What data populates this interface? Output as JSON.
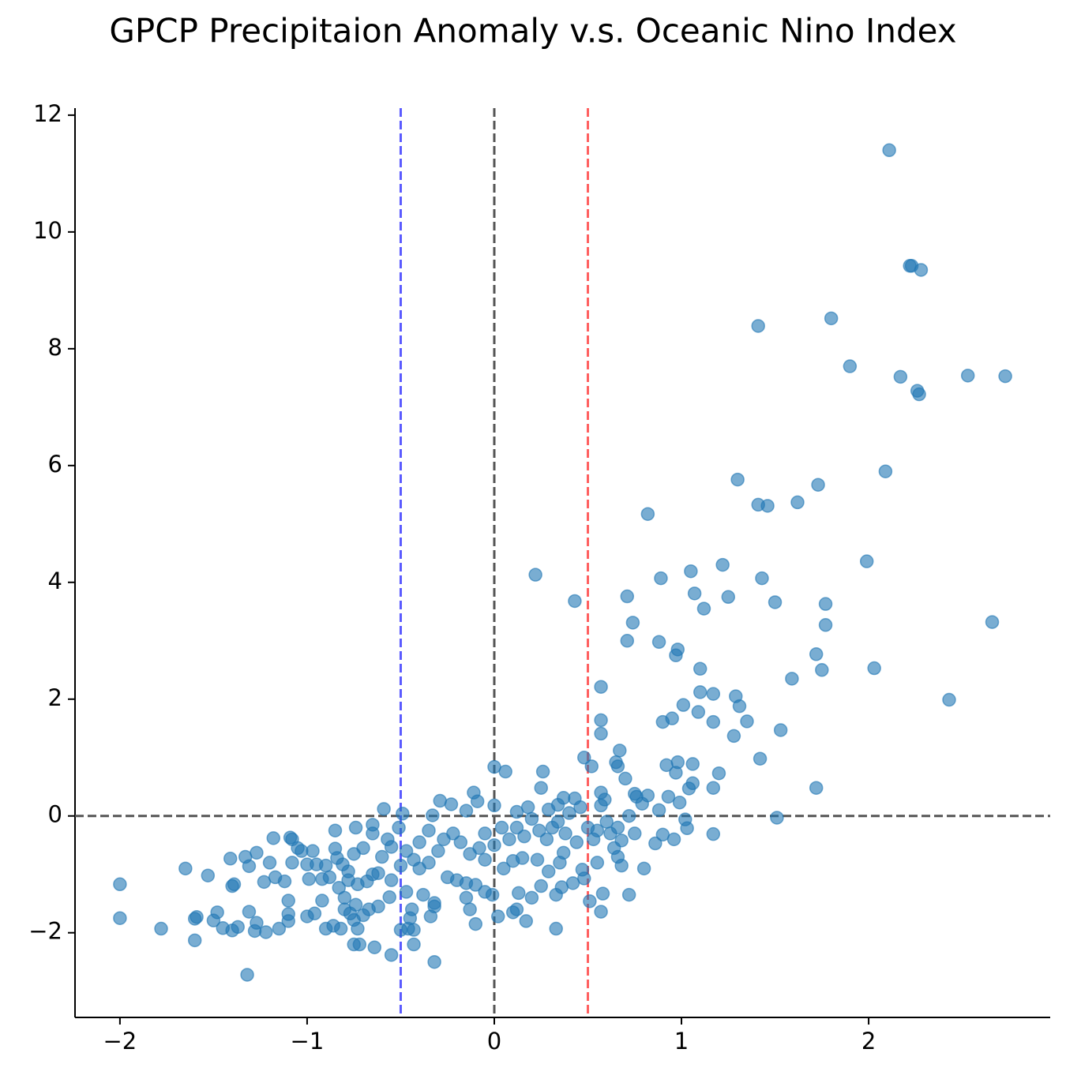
{
  "chart_data": {
    "type": "scatter",
    "title": "GPCP Precipitaion Anomaly v.s. Oceanic Nino Index",
    "color": "#1f77b4",
    "opacity": 0.6,
    "xlim": [
      -2.24,
      2.97
    ],
    "ylim": [
      -3.45,
      12.12
    ],
    "xticks": [
      {
        "value": -2,
        "label": "−2"
      },
      {
        "value": -1,
        "label": "−1"
      },
      0,
      1,
      2
    ],
    "yticks": [
      {
        "value": -2,
        "label": "−2"
      },
      0,
      2,
      4,
      6,
      8,
      10,
      12
    ],
    "vlines": [
      {
        "x": -0.5,
        "color": "#5a5aff"
      },
      {
        "x": 0,
        "color": "#555555"
      },
      {
        "x": 0.5,
        "color": "#ff6060"
      }
    ],
    "hlines": [
      {
        "y": 0,
        "color": "#555555"
      }
    ],
    "x": [
      2.11,
      2.22,
      2.23,
      2.28,
      1.41,
      1.8,
      1.9,
      2.17,
      2.26,
      2.27,
      2.53,
      2.73,
      1.3,
      1.73,
      2.09,
      1.41,
      1.46,
      1.62,
      0.82,
      0.22,
      0.43,
      1.05,
      1.22,
      1.43,
      1.99,
      0.89,
      1.07,
      1.25,
      0.71,
      1.12,
      1.5,
      1.77,
      0.74,
      1.77,
      2.66,
      0.71,
      0.88,
      0.98,
      0.97,
      1.72,
      1.1,
      1.75,
      2.03,
      1.59,
      0.57,
      1.1,
      1.17,
      1.29,
      1.31,
      1.01,
      1.09,
      2.43,
      0.57,
      0.9,
      0.95,
      1.17,
      1.35,
      0.57,
      1.28,
      1.53,
      0.67,
      0.48,
      0.65,
      0.66,
      0.52,
      0.92,
      0.98,
      1.06,
      0.97,
      1.2,
      1.06,
      1.04,
      1.17,
      1.72,
      1.42,
      1.51,
      1.17,
      0.7,
      0.75,
      0.76,
      0.57,
      0.59,
      0.57,
      0.82,
      0.79,
      0.93,
      0.99,
      0.88,
      1.02,
      1.03,
      0.96,
      0.86,
      0.8,
      0.9,
      0.75,
      0.68,
      0.68,
      0.66,
      0.64,
      0.72,
      0.58,
      0.57,
      0.51,
      0.55,
      0.47,
      0.48,
      0.55,
      0.6,
      0.46,
      0.43,
      0.37,
      0.26,
      0.25,
      0.34,
      0.29,
      0.18,
      0.12,
      0.06,
      0.0,
      0.0,
      -0.09,
      -0.11,
      -0.15,
      -0.23,
      -0.29,
      -0.33,
      -0.49,
      -0.59,
      -0.51,
      -0.65,
      -0.74,
      -0.85,
      -0.97,
      -1.0,
      -1.09,
      -1.08,
      -1.18,
      -1.27,
      -1.33,
      -1.41,
      -1.2,
      -1.05,
      -1.08,
      -1.12,
      -1.1,
      -1.17,
      -1.23,
      -1.31,
      -1.39,
      -1.4,
      -1.53,
      -1.65,
      -2.0,
      -2.0,
      -1.78,
      -1.6,
      -1.59,
      -1.6,
      -1.5,
      -1.48,
      -1.45,
      -1.4,
      -1.37,
      -1.31,
      -1.27,
      -1.28,
      -1.22,
      -1.15,
      -1.1,
      -1.1,
      -1.32,
      -1.0,
      -0.96,
      -0.92,
      -0.9,
      -0.86,
      -0.82,
      -0.8,
      -0.77,
      -0.75,
      -0.73,
      -0.72,
      -0.75,
      -0.7,
      -0.67,
      -0.64,
      -0.55,
      -0.5,
      -0.46,
      -0.43,
      -0.43,
      -0.32,
      -0.45,
      -0.44,
      -0.34,
      -0.32,
      -0.32,
      -0.38,
      -0.47,
      -0.56,
      -0.55,
      -0.62,
      -0.65,
      -0.68,
      -0.73,
      -0.78,
      -0.78,
      -0.81,
      -0.84,
      -0.85,
      -0.9,
      -0.88,
      -0.83,
      -0.8,
      -0.74,
      -0.62,
      -0.6,
      -0.57,
      -0.55,
      -0.47,
      -0.43,
      -0.4,
      -0.35,
      -0.3,
      -0.27,
      -0.25,
      -0.2,
      -0.15,
      -0.1,
      -0.15,
      -0.13,
      -0.1,
      -0.05,
      -0.01,
      0.02,
      0.1,
      0.12,
      0.17,
      0.13,
      0.2,
      0.25,
      0.33,
      0.36,
      0.42,
      0.33,
      0.29,
      0.35,
      0.37,
      0.23,
      0.15,
      0.1,
      0.05,
      -0.05,
      -0.08,
      -0.13,
      -0.18,
      -0.22,
      -0.05,
      0.0,
      0.04,
      0.08,
      0.12,
      0.16,
      0.2,
      0.24,
      0.28,
      0.31,
      0.34,
      0.38,
      0.4,
      0.44,
      0.5,
      0.53,
      0.62,
      0.66,
      0.72,
      -0.35,
      -0.4,
      -0.5,
      -0.65,
      -0.7,
      -0.75,
      -0.95,
      -0.92,
      -1.03,
      -0.99
    ],
    "values": [
      11.4,
      9.42,
      9.42,
      9.35,
      8.39,
      8.52,
      7.7,
      7.52,
      7.28,
      7.22,
      7.54,
      7.53,
      5.76,
      5.67,
      5.9,
      5.33,
      5.31,
      5.37,
      5.17,
      4.13,
      3.68,
      4.19,
      4.3,
      4.07,
      4.36,
      4.07,
      3.81,
      3.75,
      3.76,
      3.55,
      3.66,
      3.63,
      3.31,
      3.27,
      3.32,
      3.0,
      2.98,
      2.85,
      2.75,
      2.77,
      2.52,
      2.5,
      2.53,
      2.35,
      2.21,
      2.12,
      2.09,
      2.05,
      1.88,
      1.9,
      1.78,
      1.99,
      1.64,
      1.61,
      1.67,
      1.61,
      1.62,
      1.41,
      1.37,
      1.47,
      1.12,
      1.0,
      0.92,
      0.85,
      0.85,
      0.87,
      0.92,
      0.89,
      0.74,
      0.73,
      0.56,
      0.47,
      0.48,
      0.48,
      0.98,
      -0.03,
      -0.31,
      0.64,
      0.38,
      0.33,
      0.4,
      0.28,
      0.18,
      0.35,
      0.21,
      0.33,
      0.23,
      0.1,
      -0.06,
      -0.21,
      -0.4,
      -0.47,
      -0.9,
      -0.32,
      -0.3,
      -0.42,
      -0.85,
      -0.7,
      -0.55,
      -1.35,
      -1.33,
      -1.64,
      -1.46,
      -0.8,
      -0.92,
      -1.07,
      -0.25,
      -0.1,
      0.15,
      0.3,
      0.31,
      0.76,
      0.48,
      0.19,
      0.11,
      0.15,
      0.07,
      0.76,
      0.84,
      0.18,
      0.25,
      0.4,
      0.09,
      0.2,
      0.26,
      0.01,
      0.04,
      0.12,
      -0.2,
      -0.15,
      -0.2,
      -0.25,
      -0.6,
      -0.83,
      -0.37,
      -0.4,
      -0.38,
      -0.63,
      -0.7,
      -0.73,
      -0.8,
      -0.55,
      -0.8,
      -1.12,
      -1.45,
      -1.05,
      -1.13,
      -0.86,
      -1.17,
      -1.2,
      -1.02,
      -0.9,
      -1.17,
      -1.75,
      -1.93,
      -1.76,
      -1.73,
      -2.13,
      -1.79,
      -1.65,
      -1.92,
      -1.96,
      -1.9,
      -1.64,
      -1.83,
      -1.97,
      -1.99,
      -1.93,
      -1.8,
      -1.68,
      -2.72,
      -1.72,
      -1.67,
      -1.45,
      -1.93,
      -1.88,
      -1.93,
      -1.6,
      -1.67,
      -1.78,
      -1.93,
      -2.2,
      -2.2,
      -1.7,
      -1.6,
      -2.25,
      -2.38,
      -1.95,
      -1.93,
      -1.95,
      -2.2,
      -2.5,
      -1.75,
      -1.6,
      -1.72,
      -1.55,
      -1.49,
      -1.35,
      -1.3,
      -1.39,
      -1.1,
      -0.98,
      -1.0,
      -1.12,
      -1.17,
      -1.1,
      -0.95,
      -0.83,
      -0.72,
      -0.56,
      -0.85,
      -1.05,
      -1.23,
      -1.4,
      -1.52,
      -1.55,
      -0.7,
      -0.4,
      -0.53,
      -0.6,
      -0.75,
      -0.9,
      -0.8,
      -0.6,
      -0.4,
      -1.05,
      -1.1,
      -1.15,
      -1.18,
      -1.4,
      -1.6,
      -1.85,
      -1.3,
      -1.35,
      -1.72,
      -1.65,
      -1.6,
      -1.8,
      -1.32,
      -1.4,
      -1.2,
      -1.35,
      -1.22,
      -1.15,
      -1.93,
      -0.95,
      -0.8,
      -0.63,
      -0.75,
      -0.72,
      -0.77,
      -0.9,
      -0.75,
      -0.55,
      -0.65,
      -0.45,
      -0.3,
      -0.3,
      -0.5,
      -0.2,
      -0.4,
      -0.2,
      -0.35,
      -0.05,
      -0.25,
      -0.4,
      -0.2,
      -0.1,
      -0.3,
      0.05,
      -0.45,
      -0.2,
      -0.4,
      -0.3,
      -0.2,
      0.0,
      -0.25,
      -0.45,
      -0.85,
      -0.3,
      -0.55,
      -0.65,
      -0.83,
      -1.08,
      -0.6,
      -1.08
    ]
  }
}
